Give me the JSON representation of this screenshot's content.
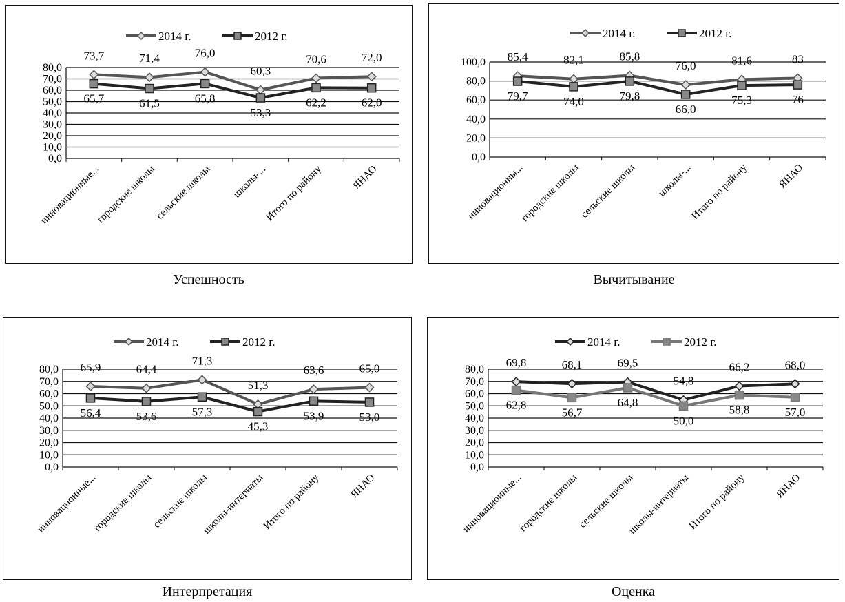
{
  "chart_data": [
    {
      "type": "line",
      "title": "",
      "caption": "Успешность",
      "categories": [
        "инновационные...",
        "городские  школы",
        "сельские школы",
        "школы-...",
        "Итого по району",
        "ЯНАО"
      ],
      "ylim": [
        0,
        80
      ],
      "yticks": [
        "0,0",
        "10,0",
        "20,0",
        "30,0",
        "40,0",
        "50,0",
        "60,0",
        "70,0",
        "80,0"
      ],
      "ytick_values": [
        0,
        10,
        20,
        30,
        40,
        50,
        60,
        70,
        80
      ],
      "legend_position": "top",
      "grid": true,
      "series": [
        {
          "name": "2014 г.",
          "values": [
            73.7,
            71.4,
            76.0,
            60.3,
            70.6,
            72.0
          ],
          "labels": [
            "73,7",
            "71,4",
            "76,0",
            "60,3",
            "70,6",
            "72,0"
          ],
          "color": "#555555",
          "marker": "diamond"
        },
        {
          "name": "2012 г.",
          "values": [
            65.7,
            61.5,
            65.8,
            53.3,
            62.2,
            62.0
          ],
          "labels": [
            "65,7",
            "61,5",
            "65,8",
            "53,3",
            "62,2",
            "62,0"
          ],
          "color": "#222222",
          "marker": "square"
        }
      ]
    },
    {
      "type": "line",
      "title": "",
      "caption": "Вычитывание",
      "categories": [
        "инновационны...",
        "городские  школы",
        "сельские школы",
        "школы-...",
        "Итого по району",
        "ЯНАО"
      ],
      "ylim": [
        0,
        100
      ],
      "yticks": [
        "0,0",
        "20,0",
        "40,0",
        "60,0",
        "80,0",
        "100,0"
      ],
      "ytick_values": [
        0,
        20,
        40,
        60,
        80,
        100
      ],
      "legend_position": "top",
      "grid": true,
      "series": [
        {
          "name": "2014 г.",
          "values": [
            85.4,
            82.1,
            85.8,
            76.0,
            81.6,
            83
          ],
          "labels": [
            "85,4",
            "82,1",
            "85,8",
            "76,0",
            "81,6",
            "83"
          ],
          "color": "#555555",
          "marker": "diamond"
        },
        {
          "name": "2012 г.",
          "values": [
            79.7,
            74.0,
            79.8,
            66.0,
            75.3,
            76
          ],
          "labels": [
            "79,7",
            "74,0",
            "79,8",
            "66,0",
            "75,3",
            "76"
          ],
          "color": "#222222",
          "marker": "square"
        }
      ]
    },
    {
      "type": "line",
      "title": "",
      "caption": "Интерпретация",
      "categories": [
        "инновационные...",
        "городские  школы",
        "сельские школы",
        "школы-интернаты",
        "Итого по району",
        "ЯНАО"
      ],
      "ylim": [
        0,
        80
      ],
      "yticks": [
        "0,0",
        "10,0",
        "20,0",
        "30,0",
        "40,0",
        "50,0",
        "60,0",
        "70,0",
        "80,0"
      ],
      "ytick_values": [
        0,
        10,
        20,
        30,
        40,
        50,
        60,
        70,
        80
      ],
      "legend_position": "top",
      "grid": true,
      "series": [
        {
          "name": "2014 г.",
          "values": [
            65.9,
            64.4,
            71.3,
            51.3,
            63.6,
            65.0
          ],
          "labels": [
            "65,9",
            "64,4",
            "71,3",
            "51,3",
            "63,6",
            "65,0"
          ],
          "color": "#555555",
          "marker": "diamond"
        },
        {
          "name": "2012 г.",
          "values": [
            56.4,
            53.6,
            57.3,
            45.3,
            53.9,
            53.0
          ],
          "labels": [
            "56,4",
            "53,6",
            "57,3",
            "45,3",
            "53,9",
            "53,0"
          ],
          "color": "#222222",
          "marker": "square"
        }
      ]
    },
    {
      "type": "line",
      "title": "",
      "caption": "Оценка",
      "categories": [
        "инновационные...",
        "городские  школы",
        "сельские школы",
        "школы-интернаты",
        "Итого по району",
        "ЯНАО"
      ],
      "ylim": [
        0,
        80
      ],
      "yticks": [
        "0,0",
        "10,0",
        "20,0",
        "30,0",
        "40,0",
        "50,0",
        "60,0",
        "70,0",
        "80,0"
      ],
      "ytick_values": [
        0,
        10,
        20,
        30,
        40,
        50,
        60,
        70,
        80
      ],
      "legend_position": "top",
      "grid": true,
      "series": [
        {
          "name": "2014 г.",
          "values": [
            69.8,
            68.1,
            69.5,
            54.8,
            66.2,
            68.0
          ],
          "labels": [
            "69,8",
            "68,1",
            "69,5",
            "54,8",
            "66,2",
            "68,0"
          ],
          "color": "#222222",
          "marker": "diamond"
        },
        {
          "name": "2012 г.",
          "values": [
            62.8,
            56.7,
            64.8,
            50.0,
            58.8,
            57.0
          ],
          "labels": [
            "62,8",
            "56,7",
            "64,8",
            "50,0",
            "58,8",
            "57,0"
          ],
          "color": "#777777",
          "marker": "square"
        }
      ]
    }
  ]
}
